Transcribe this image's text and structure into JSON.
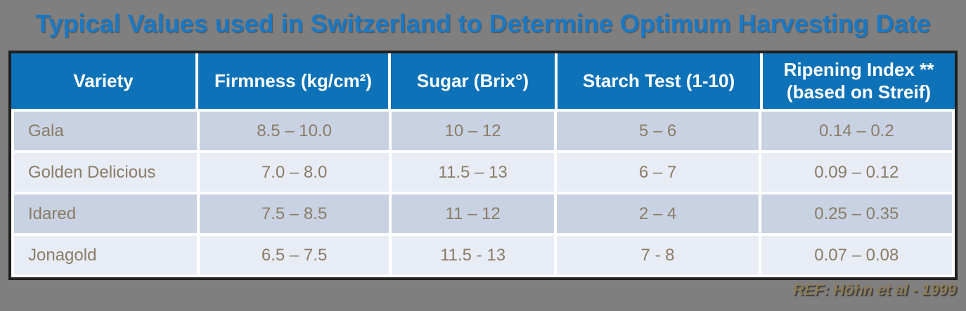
{
  "title": "Typical Values used in Switzerland to Determine Optimum Harvesting Date",
  "footer": {
    "ref": "REF: Höhn et al - 1999"
  },
  "table": {
    "headers": [
      "Variety",
      "Firmness (kg/cm²)",
      "Sugar (Brix°)",
      "Starch Test (1-10)",
      "Ripening Index **\n(based on Streif)"
    ],
    "rows": [
      [
        "Gala",
        "8.5 – 10.0",
        "10 – 12",
        "5 – 6",
        "0.14 – 0.2"
      ],
      [
        "Golden Delicious",
        "7.0 – 8.0",
        "11.5 – 13",
        "6 – 7",
        "0.09 – 0.12"
      ],
      [
        "Idared",
        "7.5 – 8.5",
        "11 – 12",
        "2 – 4",
        "0.25 – 0.35"
      ],
      [
        "Jonagold",
        "6.5 – 7.5",
        "11.5 - 13",
        "7 - 8",
        "0.07 – 0.08"
      ]
    ]
  },
  "colors": {
    "background": "#7f7f7f",
    "title": "#1b78c2",
    "header_bg": "#0e72b8",
    "header_text": "#ffffff",
    "row_odd_bg": "#c9d2e3",
    "row_even_bg": "#e8ecf5",
    "cell_text": "#8a7c66",
    "table_border": "#1f1f1f",
    "ref_text": "#8d7c59"
  },
  "chart_data": {
    "type": "table",
    "title": "Typical Values used in Switzerland to Determine Optimum Harvesting Date",
    "columns": [
      "Variety",
      "Firmness (kg/cm²)",
      "Sugar (Brix°)",
      "Starch Test (1-10)",
      "Ripening Index ** (based on Streif)"
    ],
    "rows": [
      [
        "Gala",
        "8.5 – 10.0",
        "10 – 12",
        "5 – 6",
        "0.14 – 0.2"
      ],
      [
        "Golden Delicious",
        "7.0 – 8.0",
        "11.5 – 13",
        "6 – 7",
        "0.09 – 0.12"
      ],
      [
        "Idared",
        "7.5 – 8.5",
        "11 – 12",
        "2 – 4",
        "0.25 – 0.35"
      ],
      [
        "Jonagold",
        "6.5 – 7.5",
        "11.5 - 13",
        "7 - 8",
        "0.07 – 0.08"
      ]
    ],
    "source": "REF: Höhn et al - 1999"
  }
}
